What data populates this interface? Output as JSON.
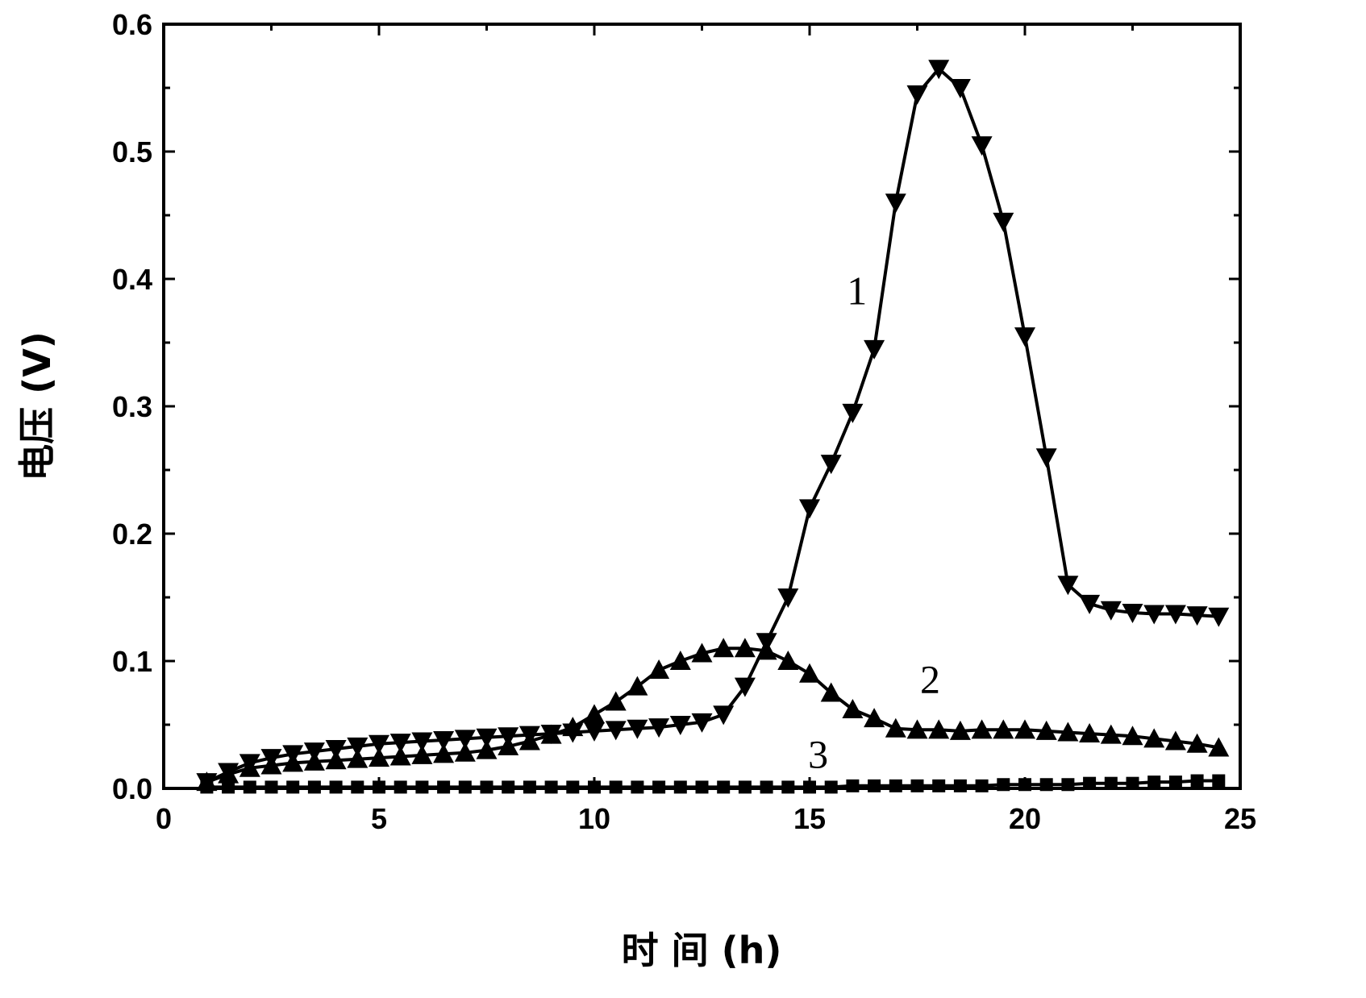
{
  "chart_data": {
    "type": "line",
    "title": "",
    "xlabel": "时 间 (h)",
    "ylabel": "电压 (V)",
    "xlim": [
      0,
      25
    ],
    "ylim": [
      0,
      0.6
    ],
    "x_ticks": [
      "0",
      "5",
      "10",
      "15",
      "20",
      "25"
    ],
    "y_ticks": [
      "0.0",
      "0.1",
      "0.2",
      "0.3",
      "0.4",
      "0.5",
      "0.6"
    ],
    "grid": false,
    "series": [
      {
        "name": "1",
        "marker": "triangle-down",
        "x": [
          1.0,
          1.5,
          2.0,
          2.5,
          3.0,
          3.5,
          4.0,
          4.5,
          5.0,
          5.5,
          6.0,
          6.5,
          7.0,
          7.5,
          8.0,
          8.5,
          9.0,
          9.5,
          10.0,
          10.5,
          11.0,
          11.5,
          12.0,
          12.5,
          13.0,
          13.5,
          14.0,
          14.5,
          15.0,
          15.5,
          16.0,
          16.5,
          17.0,
          17.5,
          18.0,
          18.5,
          19.0,
          19.5,
          20.0,
          20.5,
          21.0,
          21.5,
          22.0,
          22.5,
          23.0,
          23.5,
          24.0,
          24.5
        ],
        "y": [
          0.005,
          0.013,
          0.02,
          0.024,
          0.027,
          0.029,
          0.031,
          0.033,
          0.035,
          0.036,
          0.037,
          0.038,
          0.039,
          0.04,
          0.041,
          0.042,
          0.043,
          0.044,
          0.045,
          0.046,
          0.047,
          0.048,
          0.05,
          0.052,
          0.058,
          0.08,
          0.115,
          0.15,
          0.22,
          0.255,
          0.295,
          0.345,
          0.46,
          0.545,
          0.565,
          0.55,
          0.505,
          0.445,
          0.355,
          0.26,
          0.16,
          0.145,
          0.14,
          0.138,
          0.137,
          0.137,
          0.136,
          0.135
        ]
      },
      {
        "name": "2",
        "marker": "triangle-up",
        "x": [
          1.0,
          1.5,
          2.0,
          2.5,
          3.0,
          3.5,
          4.0,
          4.5,
          5.0,
          5.5,
          6.0,
          6.5,
          7.0,
          7.5,
          8.0,
          8.5,
          9.0,
          9.5,
          10.0,
          10.5,
          11.0,
          11.5,
          12.0,
          12.5,
          13.0,
          13.5,
          14.0,
          14.5,
          15.0,
          15.5,
          16.0,
          16.5,
          17.0,
          17.5,
          18.0,
          18.5,
          19.0,
          19.5,
          20.0,
          20.5,
          21.0,
          21.5,
          22.0,
          22.5,
          23.0,
          23.5,
          24.0,
          24.5
        ],
        "y": [
          0.005,
          0.011,
          0.016,
          0.018,
          0.02,
          0.021,
          0.022,
          0.023,
          0.024,
          0.025,
          0.026,
          0.027,
          0.028,
          0.03,
          0.033,
          0.037,
          0.042,
          0.048,
          0.058,
          0.068,
          0.08,
          0.093,
          0.1,
          0.106,
          0.11,
          0.11,
          0.108,
          0.1,
          0.09,
          0.075,
          0.062,
          0.055,
          0.047,
          0.046,
          0.046,
          0.045,
          0.046,
          0.046,
          0.046,
          0.045,
          0.044,
          0.043,
          0.042,
          0.041,
          0.039,
          0.037,
          0.035,
          0.032
        ]
      },
      {
        "name": "3",
        "marker": "square",
        "x": [
          1.0,
          1.5,
          2.0,
          2.5,
          3.0,
          3.5,
          4.0,
          4.5,
          5.0,
          5.5,
          6.0,
          6.5,
          7.0,
          7.5,
          8.0,
          8.5,
          9.0,
          9.5,
          10.0,
          10.5,
          11.0,
          11.5,
          12.0,
          12.5,
          13.0,
          13.5,
          14.0,
          14.5,
          15.0,
          15.5,
          16.0,
          16.5,
          17.0,
          17.5,
          18.0,
          18.5,
          19.0,
          19.5,
          20.0,
          20.5,
          21.0,
          21.5,
          22.0,
          22.5,
          23.0,
          23.5,
          24.0,
          24.5
        ],
        "y": [
          0.001,
          0.001,
          0.001,
          0.001,
          0.001,
          0.001,
          0.001,
          0.001,
          0.001,
          0.001,
          0.001,
          0.001,
          0.001,
          0.001,
          0.001,
          0.001,
          0.001,
          0.001,
          0.001,
          0.001,
          0.001,
          0.001,
          0.001,
          0.001,
          0.001,
          0.001,
          0.001,
          0.001,
          0.001,
          0.001,
          0.002,
          0.002,
          0.002,
          0.002,
          0.002,
          0.002,
          0.002,
          0.003,
          0.003,
          0.003,
          0.003,
          0.004,
          0.004,
          0.004,
          0.005,
          0.005,
          0.006,
          0.006
        ]
      }
    ],
    "annotations": [
      {
        "text": "1",
        "x": 16.1,
        "y": 0.38
      },
      {
        "text": "2",
        "x": 17.8,
        "y": 0.075
      },
      {
        "text": "3",
        "x": 15.2,
        "y": 0.016
      }
    ]
  }
}
